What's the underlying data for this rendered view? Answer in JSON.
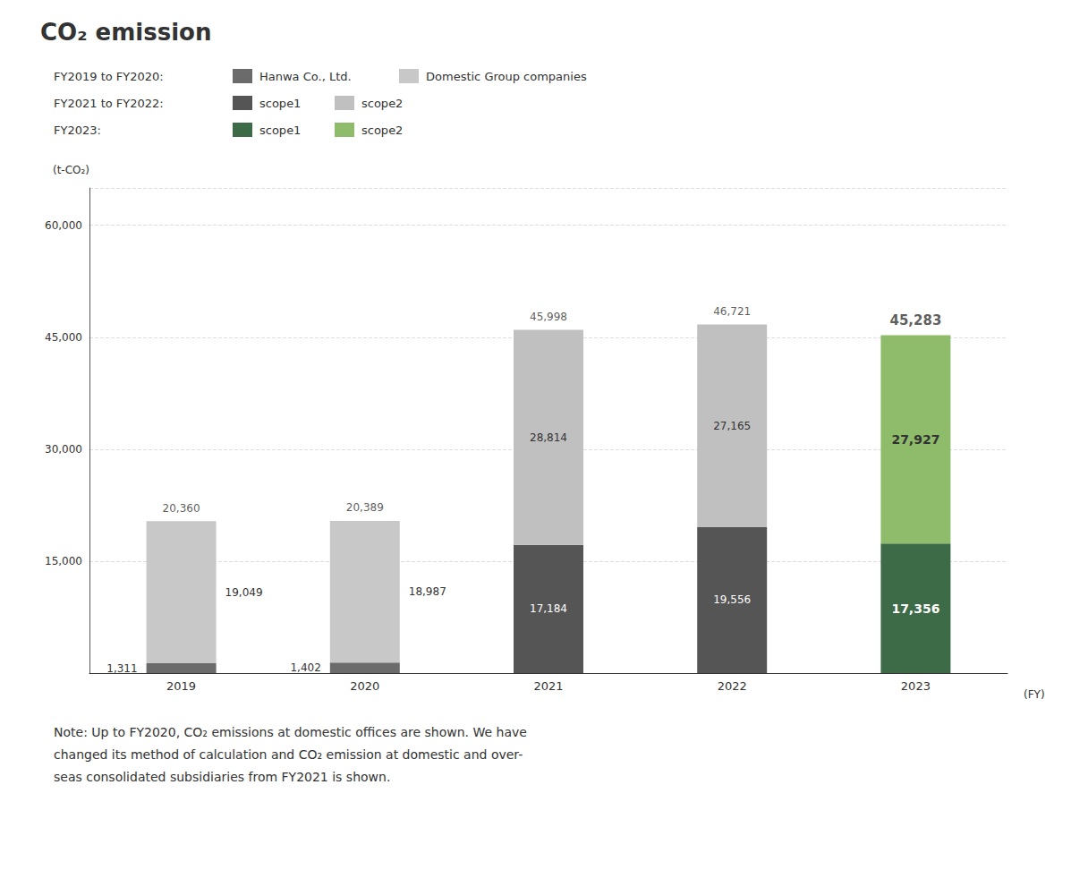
{
  "chart_data": {
    "type": "bar",
    "title": "CO₂ emission",
    "x_label": "(FY)",
    "y_label": "(t-CO₂)",
    "categories": [
      "2019",
      "2020",
      "2021",
      "2022",
      "2023"
    ],
    "ylim": [
      0,
      65000
    ],
    "yticks": [
      {
        "value": 15000,
        "label": "15,000"
      },
      {
        "value": 30000,
        "label": "30,000"
      },
      {
        "value": 45000,
        "label": "45,000"
      },
      {
        "value": 60000,
        "label": "60,000"
      }
    ],
    "grid": true,
    "stacked": true,
    "data_labels": true,
    "legend": "top",
    "series": [
      {
        "name": "Hanwa Co., Ltd.",
        "group": "FY2019 to FY2020:",
        "color": "#6b6b6b",
        "values": [
          1311,
          1402,
          null,
          null,
          null
        ],
        "value_labels": [
          "1,311",
          "1,402",
          null,
          null,
          null
        ]
      },
      {
        "name": "Domestic Group companies",
        "group": "FY2019 to FY2020:",
        "color": "#c8c8c8",
        "values": [
          19049,
          18987,
          null,
          null,
          null
        ],
        "value_labels": [
          "19,049",
          "18,987",
          null,
          null,
          null
        ]
      },
      {
        "name": "scope1",
        "group": "FY2021 to FY2022:",
        "color": "#555555",
        "values": [
          null,
          null,
          17184,
          19556,
          null
        ],
        "value_labels": [
          null,
          null,
          "17,184",
          "19,556",
          null
        ]
      },
      {
        "name": "scope2",
        "group": "FY2021 to FY2022:",
        "color": "#c0c0c0",
        "values": [
          null,
          null,
          28814,
          27165,
          null
        ],
        "value_labels": [
          null,
          null,
          "28,814",
          "27,165",
          null
        ]
      },
      {
        "name": "scope1",
        "group": "FY2023:",
        "color": "#3d6b47",
        "values": [
          null,
          null,
          null,
          null,
          17356
        ],
        "value_labels": [
          null,
          null,
          null,
          null,
          "17,356"
        ]
      },
      {
        "name": "scope2",
        "group": "FY2023:",
        "color": "#8fbc6a",
        "values": [
          null,
          null,
          null,
          null,
          27927
        ],
        "value_labels": [
          null,
          null,
          null,
          null,
          "27,927"
        ]
      }
    ],
    "totals": [
      20360,
      20389,
      45998,
      46721,
      45283
    ],
    "total_labels": [
      "20,360",
      "20,389",
      "45,998",
      "46,721",
      "45,283"
    ],
    "annotations": [
      "Note: Up to FY2020, CO₂ emissions at domestic offices are shown. We have",
      "changed its method of calculation and CO₂ emission at domestic and over-",
      "seas consolidated subsidiaries from FY2021 is shown."
    ]
  }
}
